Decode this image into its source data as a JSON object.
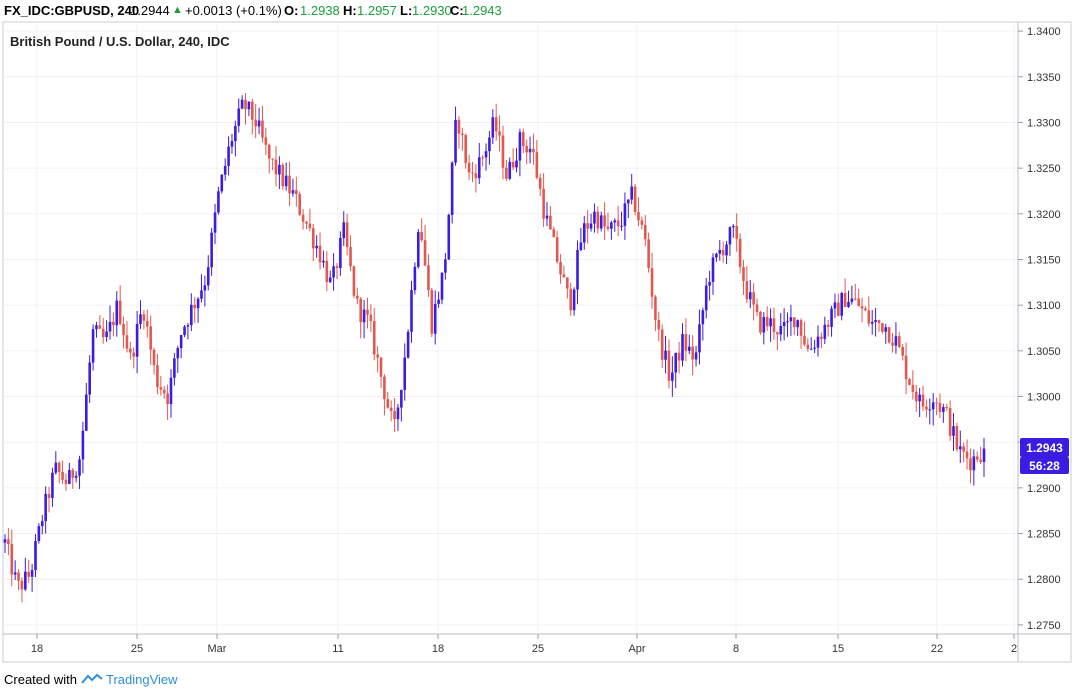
{
  "header": {
    "symbol": "FX_IDC:GBPUSD, 240",
    "last": "1.2944",
    "change": "+0.0013 (+0.1%)",
    "o_label": "O:",
    "o_value": "1.2938",
    "h_label": "H:",
    "h_value": "1.2957",
    "l_label": "L:",
    "l_value": "1.2930",
    "c_label": "C:",
    "c_value": "1.2943",
    "up_arrow_icon": "triangle-up"
  },
  "footer": {
    "created_with": "Created with",
    "brand": "TradingView",
    "logo_icon": "tradingview-logo"
  },
  "chart_data": {
    "type": "candlestick",
    "title": "British Pound / U.S. Dollar, 240, IDC",
    "timeframe": "4H",
    "ylim": [
      1.274,
      1.341
    ],
    "y_ticks": [
      "1.3400",
      "1.3350",
      "1.3300",
      "1.3250",
      "1.3200",
      "1.3150",
      "1.3100",
      "1.3050",
      "1.3000",
      "1.2950",
      "1.2900",
      "1.2850",
      "1.2800",
      "1.2750"
    ],
    "x_ticks": [
      "18",
      "25",
      "Mar",
      "11",
      "18",
      "25",
      "Apr",
      "8",
      "15",
      "22",
      "2"
    ],
    "grid": true,
    "last_price_label": "1.2943",
    "countdown_label": "56:28",
    "up_color": "#3a1de0",
    "down_color": "#e2584f",
    "badge_color": "#3a1de0",
    "close_path": [
      [
        0,
        1.284
      ],
      [
        1,
        1.279
      ],
      [
        2,
        1.2805
      ],
      [
        3,
        1.287
      ],
      [
        4,
        1.292
      ],
      [
        5,
        1.2905
      ],
      [
        6,
        1.2935
      ],
      [
        7,
        1.307
      ],
      [
        8,
        1.306
      ],
      [
        9,
        1.31
      ],
      [
        10,
        1.304
      ],
      [
        11,
        1.31
      ],
      [
        12,
        1.302
      ],
      [
        13,
        1.3
      ],
      [
        14,
        1.307
      ],
      [
        15,
        1.31
      ],
      [
        16,
        1.313
      ],
      [
        17,
        1.322
      ],
      [
        18,
        1.328
      ],
      [
        19,
        1.332
      ],
      [
        20,
        1.33
      ],
      [
        21,
        1.326
      ],
      [
        22,
        1.324
      ],
      [
        23,
        1.322
      ],
      [
        24,
        1.319
      ],
      [
        25,
        1.316
      ],
      [
        26,
        1.312
      ],
      [
        27,
        1.318
      ],
      [
        28,
        1.31
      ],
      [
        29,
        1.308
      ],
      [
        30,
        1.302
      ],
      [
        31,
        1.296
      ],
      [
        32,
        1.306
      ],
      [
        33,
        1.32
      ],
      [
        34,
        1.308
      ],
      [
        35,
        1.314
      ],
      [
        36,
        1.331
      ],
      [
        37,
        1.324
      ],
      [
        38,
        1.326
      ],
      [
        39,
        1.33
      ],
      [
        40,
        1.324
      ],
      [
        41,
        1.328
      ],
      [
        42,
        1.327
      ],
      [
        43,
        1.32
      ],
      [
        44,
        1.315
      ],
      [
        45,
        1.31
      ],
      [
        46,
        1.318
      ],
      [
        47,
        1.32
      ],
      [
        48,
        1.318
      ],
      [
        49,
        1.319
      ],
      [
        50,
        1.322
      ],
      [
        51,
        1.317
      ],
      [
        52,
        1.307
      ],
      [
        53,
        1.302
      ],
      [
        54,
        1.306
      ],
      [
        55,
        1.304
      ],
      [
        56,
        1.313
      ],
      [
        57,
        1.316
      ],
      [
        58,
        1.318
      ],
      [
        59,
        1.312
      ],
      [
        60,
        1.308
      ],
      [
        61,
        1.308
      ],
      [
        62,
        1.307
      ],
      [
        63,
        1.309
      ],
      [
        64,
        1.305
      ],
      [
        65,
        1.307
      ],
      [
        66,
        1.309
      ],
      [
        67,
        1.311
      ],
      [
        68,
        1.31
      ],
      [
        69,
        1.308
      ],
      [
        70,
        1.308
      ],
      [
        71,
        1.306
      ],
      [
        72,
        1.302
      ],
      [
        73,
        1.299
      ],
      [
        74,
        1.3
      ],
      [
        75,
        1.298
      ],
      [
        76,
        1.294
      ],
      [
        77,
        1.293
      ],
      [
        78,
        1.2943
      ]
    ]
  }
}
